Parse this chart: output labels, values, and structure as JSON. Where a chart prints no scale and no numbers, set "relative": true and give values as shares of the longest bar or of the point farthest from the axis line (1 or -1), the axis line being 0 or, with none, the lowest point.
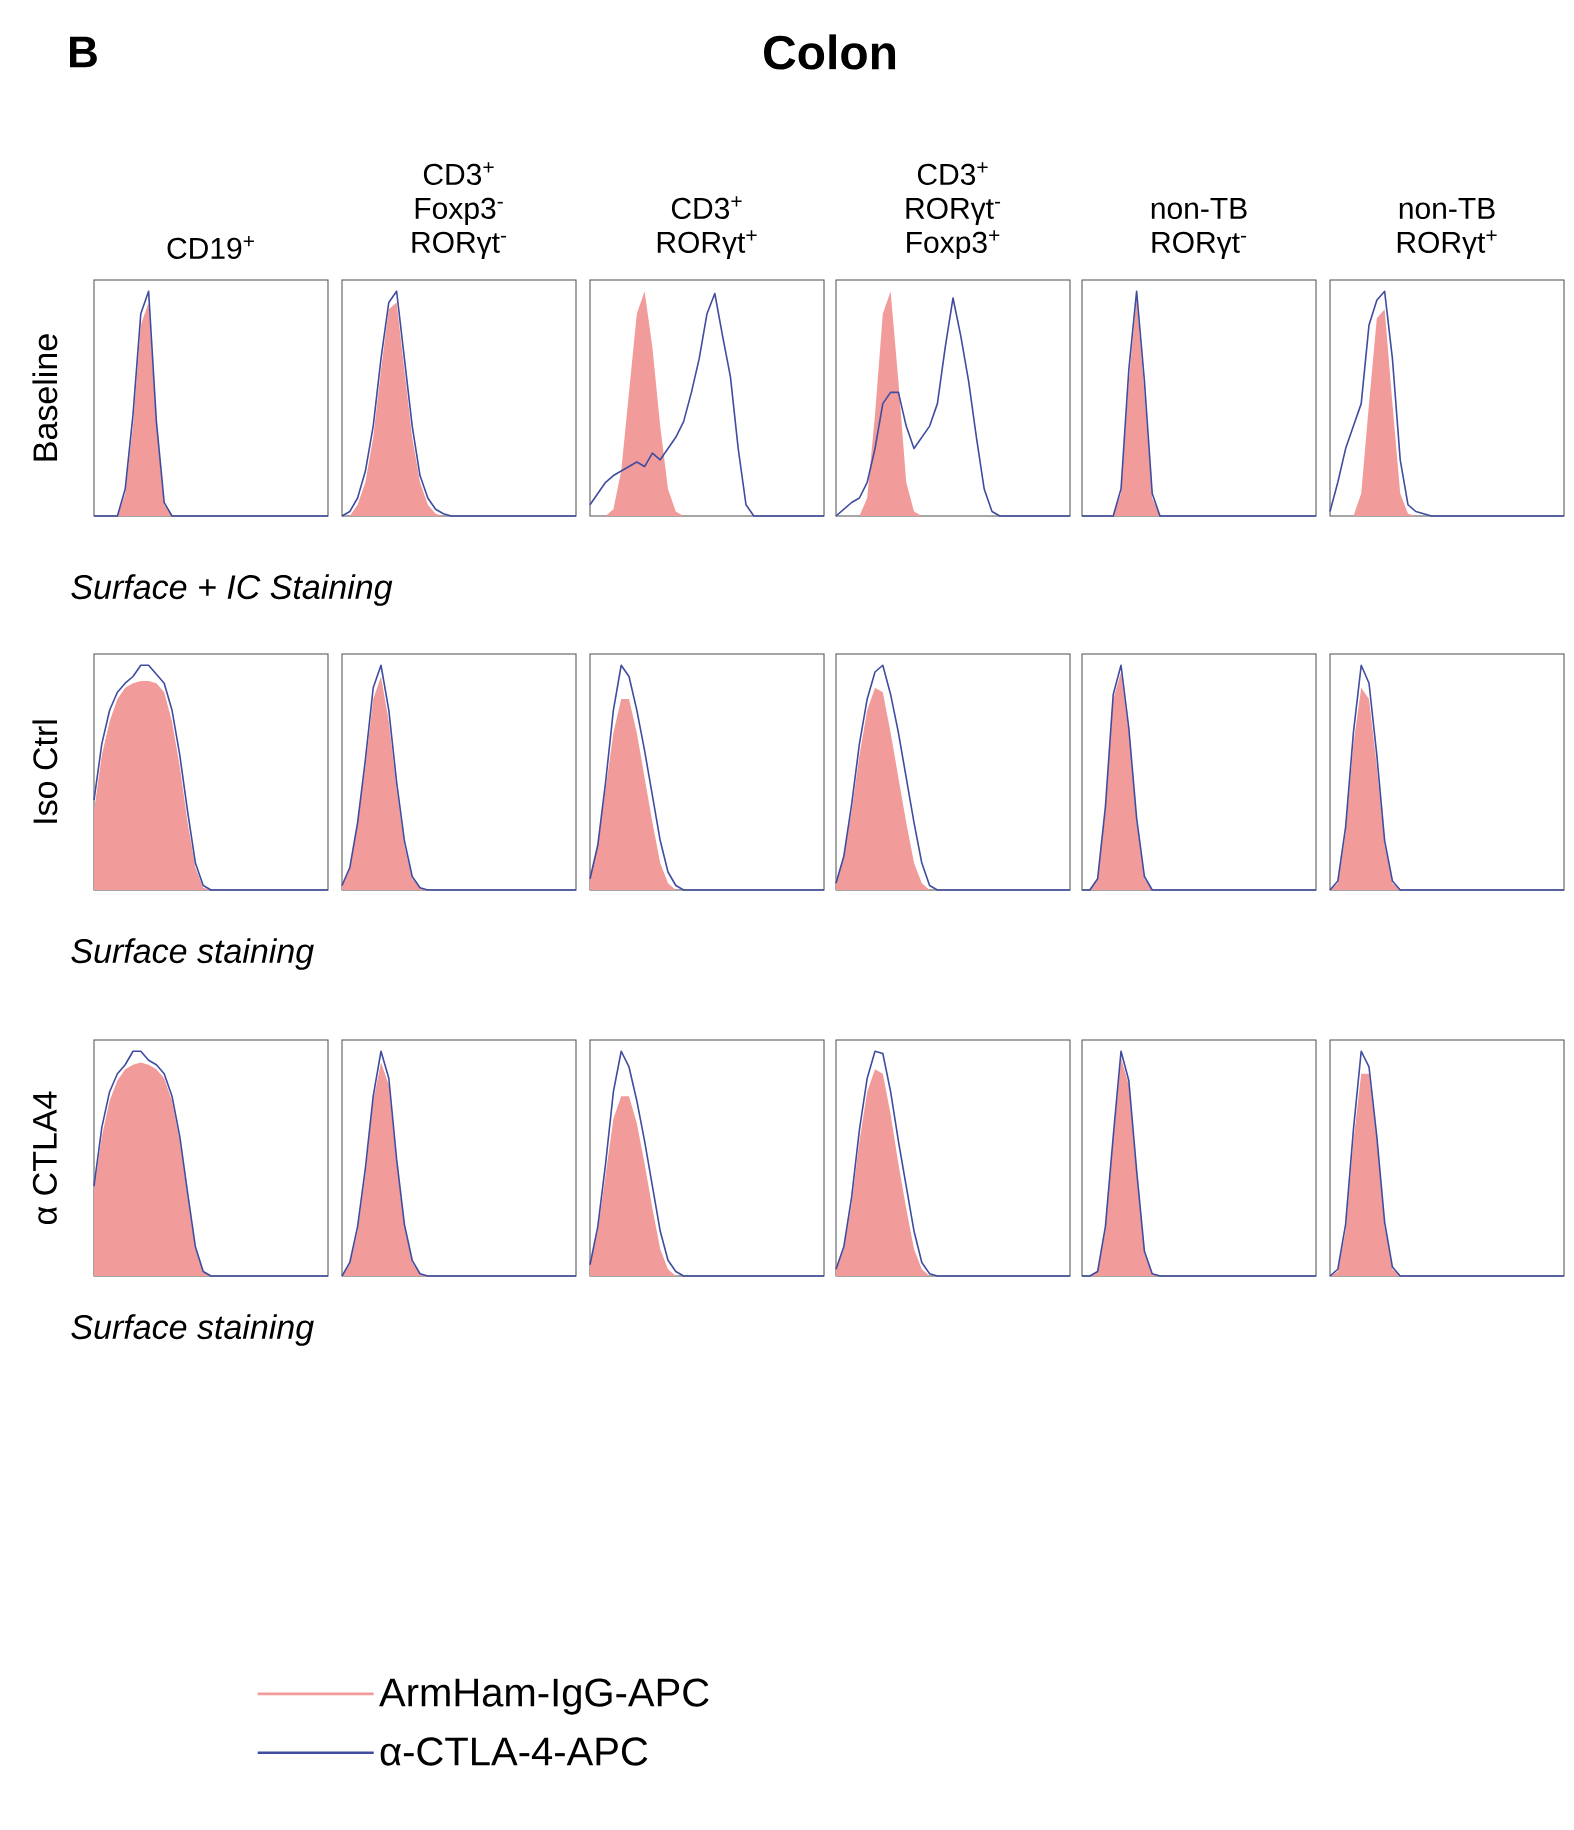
{
  "chart_data": [
    {
      "type": "other",
      "title": "Colon",
      "annotations": [
        "B"
      ]
    },
    {
      "type": "area",
      "relative": true,
      "title": "CD19$^{+}$",
      "ylabel": "Baseline",
      "annotations": [
        "Surface + IC Staining"
      ],
      "legend": "bottom",
      "categories": [
        null,
        null,
        null,
        null,
        null,
        null,
        null,
        null,
        null,
        null,
        null,
        null,
        null,
        null,
        null,
        null,
        null,
        null,
        null,
        null,
        null,
        null,
        null,
        null,
        null,
        null,
        null,
        null,
        null,
        null,
        null
      ],
      "series": [
        {
          "name": "ArmHam-IgG-APC",
          "type": "area",
          "color": "#f29b9b",
          "values": [
            0,
            0,
            0,
            0,
            0.1,
            0.4,
            0.85,
            0.95,
            0.4,
            0.05,
            0,
            0,
            0,
            0,
            0,
            0,
            0,
            0,
            0,
            0,
            0,
            0,
            0,
            0,
            0,
            0,
            0,
            0,
            0,
            0,
            0
          ]
        },
        {
          "name": "α-CTLA-4-APC",
          "type": "line",
          "color": "#3f4c9f",
          "values": [
            0,
            0,
            0,
            0,
            0.12,
            0.45,
            0.9,
            1,
            0.42,
            0.06,
            0,
            0,
            0,
            0,
            0,
            0,
            0,
            0,
            0,
            0,
            0,
            0,
            0,
            0,
            0,
            0,
            0,
            0,
            0,
            0,
            0
          ]
        }
      ]
    },
    {
      "type": "area",
      "relative": true,
      "title": "CD3$^{+}$ Foxp3$^{-}$ RORγt$^{-}$",
      "categories": [
        null,
        null,
        null,
        null,
        null,
        null,
        null,
        null,
        null,
        null,
        null,
        null,
        null,
        null,
        null,
        null,
        null,
        null,
        null,
        null,
        null,
        null,
        null,
        null,
        null,
        null,
        null,
        null,
        null,
        null,
        null
      ],
      "series": [
        {
          "type": "area",
          "color": "#f29b9b",
          "values": [
            0,
            0,
            0.05,
            0.15,
            0.35,
            0.65,
            0.92,
            0.95,
            0.65,
            0.35,
            0.15,
            0.05,
            0.01,
            0,
            0,
            0,
            0,
            0,
            0,
            0,
            0,
            0,
            0,
            0,
            0,
            0,
            0,
            0,
            0,
            0,
            0
          ]
        },
        {
          "type": "line",
          "color": "#3f4c9f",
          "values": [
            0,
            0.02,
            0.08,
            0.2,
            0.4,
            0.7,
            0.95,
            1,
            0.7,
            0.4,
            0.18,
            0.08,
            0.03,
            0.01,
            0,
            0,
            0,
            0,
            0,
            0,
            0,
            0,
            0,
            0,
            0,
            0,
            0,
            0,
            0,
            0,
            0
          ]
        }
      ]
    },
    {
      "type": "area",
      "relative": true,
      "title": "CD3$^{+}$ RORγt$^{+}$",
      "categories": [
        null,
        null,
        null,
        null,
        null,
        null,
        null,
        null,
        null,
        null,
        null,
        null,
        null,
        null,
        null,
        null,
        null,
        null,
        null,
        null,
        null,
        null,
        null,
        null,
        null,
        null,
        null,
        null,
        null,
        null,
        null
      ],
      "series": [
        {
          "type": "area",
          "color": "#f29b9b",
          "values": [
            0,
            0,
            0,
            0.03,
            0.2,
            0.55,
            0.9,
            1,
            0.75,
            0.4,
            0.12,
            0.02,
            0,
            0,
            0,
            0,
            0,
            0,
            0,
            0,
            0,
            0,
            0,
            0,
            0,
            0,
            0,
            0,
            0,
            0,
            0
          ]
        },
        {
          "type": "line",
          "color": "#3f4c9f",
          "values": [
            0.05,
            0.1,
            0.15,
            0.18,
            0.2,
            0.22,
            0.24,
            0.22,
            0.28,
            0.25,
            0.3,
            0.35,
            0.42,
            0.55,
            0.7,
            0.9,
            0.99,
            0.8,
            0.62,
            0.3,
            0.05,
            0,
            0,
            0,
            0,
            0,
            0,
            0,
            0,
            0,
            0
          ]
        }
      ]
    },
    {
      "type": "area",
      "relative": true,
      "title": "CD3$^{+}$ RORγt$^{-}$ Foxp3$^{+}$",
      "categories": [
        null,
        null,
        null,
        null,
        null,
        null,
        null,
        null,
        null,
        null,
        null,
        null,
        null,
        null,
        null,
        null,
        null,
        null,
        null,
        null,
        null,
        null,
        null,
        null,
        null,
        null,
        null,
        null,
        null,
        null,
        null
      ],
      "series": [
        {
          "type": "area",
          "color": "#f29b9b",
          "values": [
            0,
            0,
            0,
            0,
            0.08,
            0.45,
            0.9,
            1,
            0.6,
            0.15,
            0.02,
            0,
            0,
            0,
            0,
            0,
            0,
            0,
            0,
            0,
            0,
            0,
            0,
            0,
            0,
            0,
            0,
            0,
            0,
            0,
            0
          ]
        },
        {
          "type": "line",
          "color": "#3f4c9f",
          "values": [
            0,
            0.03,
            0.06,
            0.08,
            0.15,
            0.3,
            0.5,
            0.55,
            0.55,
            0.4,
            0.3,
            0.35,
            0.4,
            0.5,
            0.75,
            0.97,
            0.8,
            0.6,
            0.35,
            0.12,
            0.02,
            0,
            0,
            0,
            0,
            0,
            0,
            0,
            0,
            0,
            0
          ]
        }
      ]
    },
    {
      "type": "area",
      "relative": true,
      "title": "non-TB RORγt$^{-}$",
      "categories": [
        null,
        null,
        null,
        null,
        null,
        null,
        null,
        null,
        null,
        null,
        null,
        null,
        null,
        null,
        null,
        null,
        null,
        null,
        null,
        null,
        null,
        null,
        null,
        null,
        null,
        null,
        null,
        null,
        null,
        null,
        null
      ],
      "series": [
        {
          "type": "area",
          "color": "#f29b9b",
          "values": [
            0,
            0,
            0,
            0,
            0,
            0.1,
            0.6,
            0.97,
            0.55,
            0.08,
            0,
            0,
            0,
            0,
            0,
            0,
            0,
            0,
            0,
            0,
            0,
            0,
            0,
            0,
            0,
            0,
            0,
            0,
            0,
            0,
            0
          ]
        },
        {
          "type": "line",
          "color": "#3f4c9f",
          "values": [
            0,
            0,
            0,
            0,
            0,
            0.12,
            0.65,
            1,
            0.6,
            0.1,
            0,
            0,
            0,
            0,
            0,
            0,
            0,
            0,
            0,
            0,
            0,
            0,
            0,
            0,
            0,
            0,
            0,
            0,
            0,
            0,
            0
          ]
        }
      ]
    },
    {
      "type": "area",
      "relative": true,
      "title": "non-TB RORγt$^{+}$",
      "categories": [
        null,
        null,
        null,
        null,
        null,
        null,
        null,
        null,
        null,
        null,
        null,
        null,
        null,
        null,
        null,
        null,
        null,
        null,
        null,
        null,
        null,
        null,
        null,
        null,
        null,
        null,
        null,
        null,
        null,
        null,
        null
      ],
      "series": [
        {
          "type": "area",
          "color": "#f29b9b",
          "values": [
            0,
            0,
            0,
            0,
            0.1,
            0.5,
            0.88,
            0.92,
            0.5,
            0.1,
            0.01,
            0,
            0,
            0,
            0,
            0,
            0,
            0,
            0,
            0,
            0,
            0,
            0,
            0,
            0,
            0,
            0,
            0,
            0,
            0,
            0
          ]
        },
        {
          "type": "line",
          "color": "#3f4c9f",
          "values": [
            0.02,
            0.15,
            0.3,
            0.4,
            0.5,
            0.85,
            0.96,
            1,
            0.7,
            0.25,
            0.05,
            0.02,
            0.01,
            0,
            0,
            0,
            0,
            0,
            0,
            0,
            0,
            0,
            0,
            0,
            0,
            0,
            0,
            0,
            0,
            0,
            0
          ]
        }
      ]
    },
    {
      "type": "area",
      "relative": true,
      "ylabel": "Iso Ctrl",
      "annotations": [
        "Surface staining"
      ],
      "categories": [
        null,
        null,
        null,
        null,
        null,
        null,
        null,
        null,
        null,
        null,
        null,
        null,
        null,
        null,
        null,
        null,
        null,
        null,
        null,
        null,
        null,
        null,
        null,
        null,
        null,
        null,
        null,
        null,
        null,
        null,
        null
      ],
      "series": [
        {
          "type": "area",
          "color": "#f29b9b",
          "values": [
            0.35,
            0.6,
            0.75,
            0.85,
            0.9,
            0.92,
            0.93,
            0.93,
            0.92,
            0.88,
            0.75,
            0.55,
            0.3,
            0.1,
            0.01,
            0,
            0,
            0,
            0,
            0,
            0,
            0,
            0,
            0,
            0,
            0,
            0,
            0,
            0,
            0,
            0
          ]
        },
        {
          "type": "line",
          "color": "#3f4c9f",
          "values": [
            0.4,
            0.65,
            0.8,
            0.88,
            0.92,
            0.95,
            1,
            1,
            0.96,
            0.92,
            0.8,
            0.6,
            0.35,
            0.12,
            0.02,
            0,
            0,
            0,
            0,
            0,
            0,
            0,
            0,
            0,
            0,
            0,
            0,
            0,
            0,
            0,
            0
          ]
        }
      ]
    },
    {
      "type": "area",
      "relative": true,
      "categories": [
        null,
        null,
        null,
        null,
        null,
        null,
        null,
        null,
        null,
        null,
        null,
        null,
        null,
        null,
        null,
        null,
        null,
        null,
        null,
        null,
        null,
        null,
        null,
        null,
        null,
        null,
        null,
        null,
        null,
        null,
        null
      ],
      "series": [
        {
          "type": "area",
          "color": "#f29b9b",
          "values": [
            0.02,
            0.1,
            0.3,
            0.55,
            0.85,
            0.95,
            0.75,
            0.45,
            0.2,
            0.05,
            0.01,
            0,
            0,
            0,
            0,
            0,
            0,
            0,
            0,
            0,
            0,
            0,
            0,
            0,
            0,
            0,
            0,
            0,
            0,
            0,
            0
          ]
        },
        {
          "type": "line",
          "color": "#3f4c9f",
          "values": [
            0.02,
            0.1,
            0.3,
            0.58,
            0.9,
            1,
            0.8,
            0.48,
            0.22,
            0.06,
            0.01,
            0,
            0,
            0,
            0,
            0,
            0,
            0,
            0,
            0,
            0,
            0,
            0,
            0,
            0,
            0,
            0,
            0,
            0,
            0,
            0
          ]
        }
      ]
    },
    {
      "type": "area",
      "relative": true,
      "categories": [
        null,
        null,
        null,
        null,
        null,
        null,
        null,
        null,
        null,
        null,
        null,
        null,
        null,
        null,
        null,
        null,
        null,
        null,
        null,
        null,
        null,
        null,
        null,
        null,
        null,
        null,
        null,
        null,
        null,
        null,
        null
      ],
      "series": [
        {
          "type": "area",
          "color": "#f29b9b",
          "values": [
            0.05,
            0.2,
            0.45,
            0.7,
            0.85,
            0.85,
            0.7,
            0.5,
            0.3,
            0.12,
            0.03,
            0,
            0,
            0,
            0,
            0,
            0,
            0,
            0,
            0,
            0,
            0,
            0,
            0,
            0,
            0,
            0,
            0,
            0,
            0,
            0
          ]
        },
        {
          "type": "line",
          "color": "#3f4c9f",
          "values": [
            0.05,
            0.2,
            0.48,
            0.8,
            1,
            0.95,
            0.8,
            0.62,
            0.42,
            0.22,
            0.08,
            0.02,
            0,
            0,
            0,
            0,
            0,
            0,
            0,
            0,
            0,
            0,
            0,
            0,
            0,
            0,
            0,
            0,
            0,
            0,
            0
          ]
        }
      ]
    },
    {
      "type": "area",
      "relative": true,
      "categories": [
        null,
        null,
        null,
        null,
        null,
        null,
        null,
        null,
        null,
        null,
        null,
        null,
        null,
        null,
        null,
        null,
        null,
        null,
        null,
        null,
        null,
        null,
        null,
        null,
        null,
        null,
        null,
        null,
        null,
        null,
        null
      ],
      "series": [
        {
          "type": "area",
          "color": "#f29b9b",
          "values": [
            0.03,
            0.15,
            0.35,
            0.6,
            0.8,
            0.9,
            0.88,
            0.7,
            0.5,
            0.3,
            0.12,
            0.03,
            0,
            0,
            0,
            0,
            0,
            0,
            0,
            0,
            0,
            0,
            0,
            0,
            0,
            0,
            0,
            0,
            0,
            0,
            0
          ]
        },
        {
          "type": "line",
          "color": "#3f4c9f",
          "values": [
            0.03,
            0.15,
            0.38,
            0.65,
            0.85,
            0.97,
            1,
            0.87,
            0.7,
            0.5,
            0.3,
            0.12,
            0.02,
            0,
            0,
            0,
            0,
            0,
            0,
            0,
            0,
            0,
            0,
            0,
            0,
            0,
            0,
            0,
            0,
            0,
            0
          ]
        }
      ]
    },
    {
      "type": "area",
      "relative": true,
      "categories": [
        null,
        null,
        null,
        null,
        null,
        null,
        null,
        null,
        null,
        null,
        null,
        null,
        null,
        null,
        null,
        null,
        null,
        null,
        null,
        null,
        null,
        null,
        null,
        null,
        null,
        null,
        null,
        null,
        null,
        null,
        null
      ],
      "series": [
        {
          "type": "area",
          "color": "#f29b9b",
          "values": [
            0,
            0,
            0.05,
            0.35,
            0.85,
            0.97,
            0.7,
            0.3,
            0.05,
            0,
            0,
            0,
            0,
            0,
            0,
            0,
            0,
            0,
            0,
            0,
            0,
            0,
            0,
            0,
            0,
            0,
            0,
            0,
            0,
            0,
            0
          ]
        },
        {
          "type": "line",
          "color": "#3f4c9f",
          "values": [
            0,
            0,
            0.05,
            0.37,
            0.87,
            1,
            0.72,
            0.32,
            0.06,
            0,
            0,
            0,
            0,
            0,
            0,
            0,
            0,
            0,
            0,
            0,
            0,
            0,
            0,
            0,
            0,
            0,
            0,
            0,
            0,
            0,
            0
          ]
        }
      ]
    },
    {
      "type": "area",
      "relative": true,
      "categories": [
        null,
        null,
        null,
        null,
        null,
        null,
        null,
        null,
        null,
        null,
        null,
        null,
        null,
        null,
        null,
        null,
        null,
        null,
        null,
        null,
        null,
        null,
        null,
        null,
        null,
        null,
        null,
        null,
        null,
        null,
        null
      ],
      "series": [
        {
          "type": "area",
          "color": "#f29b9b",
          "values": [
            0,
            0.03,
            0.25,
            0.65,
            0.9,
            0.85,
            0.55,
            0.2,
            0.03,
            0,
            0,
            0,
            0,
            0,
            0,
            0,
            0,
            0,
            0,
            0,
            0,
            0,
            0,
            0,
            0,
            0,
            0,
            0,
            0,
            0,
            0
          ]
        },
        {
          "type": "line",
          "color": "#3f4c9f",
          "values": [
            0,
            0.04,
            0.28,
            0.7,
            1,
            0.92,
            0.6,
            0.22,
            0.04,
            0,
            0,
            0,
            0,
            0,
            0,
            0,
            0,
            0,
            0,
            0,
            0,
            0,
            0,
            0,
            0,
            0,
            0,
            0,
            0,
            0,
            0
          ]
        }
      ]
    },
    {
      "type": "area",
      "relative": true,
      "ylabel": "α CTLA4",
      "annotations": [
        "Surface staining"
      ],
      "categories": [
        null,
        null,
        null,
        null,
        null,
        null,
        null,
        null,
        null,
        null,
        null,
        null,
        null,
        null,
        null,
        null,
        null,
        null,
        null,
        null,
        null,
        null,
        null,
        null,
        null,
        null,
        null,
        null,
        null,
        null,
        null
      ],
      "series": [
        {
          "type": "area",
          "color": "#f29b9b",
          "values": [
            0.38,
            0.62,
            0.78,
            0.87,
            0.92,
            0.94,
            0.95,
            0.94,
            0.92,
            0.88,
            0.78,
            0.6,
            0.35,
            0.12,
            0.02,
            0,
            0,
            0,
            0,
            0,
            0,
            0,
            0,
            0,
            0,
            0,
            0,
            0,
            0,
            0,
            0
          ]
        },
        {
          "type": "line",
          "color": "#3f4c9f",
          "values": [
            0.4,
            0.66,
            0.82,
            0.9,
            0.94,
            1,
            1,
            0.96,
            0.94,
            0.9,
            0.8,
            0.62,
            0.37,
            0.13,
            0.02,
            0,
            0,
            0,
            0,
            0,
            0,
            0,
            0,
            0,
            0,
            0,
            0,
            0,
            0,
            0,
            0
          ]
        }
      ]
    },
    {
      "type": "area",
      "relative": true,
      "categories": [
        null,
        null,
        null,
        null,
        null,
        null,
        null,
        null,
        null,
        null,
        null,
        null,
        null,
        null,
        null,
        null,
        null,
        null,
        null,
        null,
        null,
        null,
        null,
        null,
        null,
        null,
        null,
        null,
        null,
        null,
        null
      ],
      "series": [
        {
          "type": "area",
          "color": "#f29b9b",
          "values": [
            0,
            0.05,
            0.2,
            0.45,
            0.78,
            0.95,
            0.85,
            0.5,
            0.22,
            0.06,
            0.01,
            0,
            0,
            0,
            0,
            0,
            0,
            0,
            0,
            0,
            0,
            0,
            0,
            0,
            0,
            0,
            0,
            0,
            0,
            0,
            0
          ]
        },
        {
          "type": "line",
          "color": "#3f4c9f",
          "values": [
            0,
            0.06,
            0.22,
            0.48,
            0.8,
            1,
            0.88,
            0.52,
            0.23,
            0.07,
            0.01,
            0,
            0,
            0,
            0,
            0,
            0,
            0,
            0,
            0,
            0,
            0,
            0,
            0,
            0,
            0,
            0,
            0,
            0,
            0,
            0
          ]
        }
      ]
    },
    {
      "type": "area",
      "relative": true,
      "categories": [
        null,
        null,
        null,
        null,
        null,
        null,
        null,
        null,
        null,
        null,
        null,
        null,
        null,
        null,
        null,
        null,
        null,
        null,
        null,
        null,
        null,
        null,
        null,
        null,
        null,
        null,
        null,
        null,
        null,
        null,
        null
      ],
      "series": [
        {
          "type": "area",
          "color": "#f29b9b",
          "values": [
            0.05,
            0.2,
            0.45,
            0.7,
            0.8,
            0.8,
            0.68,
            0.5,
            0.3,
            0.12,
            0.03,
            0,
            0,
            0,
            0,
            0,
            0,
            0,
            0,
            0,
            0,
            0,
            0,
            0,
            0,
            0,
            0,
            0,
            0,
            0,
            0
          ]
        },
        {
          "type": "line",
          "color": "#3f4c9f",
          "values": [
            0.05,
            0.22,
            0.5,
            0.82,
            1,
            0.93,
            0.78,
            0.6,
            0.4,
            0.2,
            0.07,
            0.02,
            0,
            0,
            0,
            0,
            0,
            0,
            0,
            0,
            0,
            0,
            0,
            0,
            0,
            0,
            0,
            0,
            0,
            0,
            0
          ]
        }
      ]
    },
    {
      "type": "area",
      "relative": true,
      "categories": [
        null,
        null,
        null,
        null,
        null,
        null,
        null,
        null,
        null,
        null,
        null,
        null,
        null,
        null,
        null,
        null,
        null,
        null,
        null,
        null,
        null,
        null,
        null,
        null,
        null,
        null,
        null,
        null,
        null,
        null,
        null
      ],
      "series": [
        {
          "type": "area",
          "color": "#f29b9b",
          "values": [
            0.03,
            0.12,
            0.32,
            0.6,
            0.82,
            0.92,
            0.9,
            0.72,
            0.5,
            0.3,
            0.12,
            0.03,
            0,
            0,
            0,
            0,
            0,
            0,
            0,
            0,
            0,
            0,
            0,
            0,
            0,
            0,
            0,
            0,
            0,
            0,
            0
          ]
        },
        {
          "type": "line",
          "color": "#3f4c9f",
          "values": [
            0.03,
            0.13,
            0.35,
            0.65,
            0.88,
            1,
            0.99,
            0.82,
            0.6,
            0.4,
            0.2,
            0.06,
            0.01,
            0,
            0,
            0,
            0,
            0,
            0,
            0,
            0,
            0,
            0,
            0,
            0,
            0,
            0,
            0,
            0,
            0,
            0
          ]
        }
      ]
    },
    {
      "type": "area",
      "relative": true,
      "categories": [
        null,
        null,
        null,
        null,
        null,
        null,
        null,
        null,
        null,
        null,
        null,
        null,
        null,
        null,
        null,
        null,
        null,
        null,
        null,
        null,
        null,
        null,
        null,
        null,
        null,
        null,
        null,
        null,
        null,
        null,
        null
      ],
      "series": [
        {
          "type": "area",
          "color": "#f29b9b",
          "values": [
            0,
            0,
            0.02,
            0.2,
            0.6,
            0.97,
            0.85,
            0.45,
            0.1,
            0.01,
            0,
            0,
            0,
            0,
            0,
            0,
            0,
            0,
            0,
            0,
            0,
            0,
            0,
            0,
            0,
            0,
            0,
            0,
            0,
            0,
            0
          ]
        },
        {
          "type": "line",
          "color": "#3f4c9f",
          "values": [
            0,
            0,
            0.02,
            0.22,
            0.62,
            1,
            0.87,
            0.47,
            0.11,
            0.01,
            0,
            0,
            0,
            0,
            0,
            0,
            0,
            0,
            0,
            0,
            0,
            0,
            0,
            0,
            0,
            0,
            0,
            0,
            0,
            0,
            0
          ]
        }
      ]
    },
    {
      "type": "area",
      "relative": true,
      "categories": [
        null,
        null,
        null,
        null,
        null,
        null,
        null,
        null,
        null,
        null,
        null,
        null,
        null,
        null,
        null,
        null,
        null,
        null,
        null,
        null,
        null,
        null,
        null,
        null,
        null,
        null,
        null,
        null,
        null,
        null,
        null
      ],
      "series": [
        {
          "type": "area",
          "color": "#f29b9b",
          "values": [
            0,
            0.02,
            0.2,
            0.6,
            0.9,
            0.9,
            0.6,
            0.22,
            0.03,
            0,
            0,
            0,
            0,
            0,
            0,
            0,
            0,
            0,
            0,
            0,
            0,
            0,
            0,
            0,
            0,
            0,
            0,
            0,
            0,
            0,
            0
          ]
        },
        {
          "type": "line",
          "color": "#3f4c9f",
          "values": [
            0,
            0.03,
            0.23,
            0.65,
            1,
            0.93,
            0.62,
            0.24,
            0.04,
            0,
            0,
            0,
            0,
            0,
            0,
            0,
            0,
            0,
            0,
            0,
            0,
            0,
            0,
            0,
            0,
            0,
            0,
            0,
            0,
            0,
            0
          ]
        }
      ]
    }
  ]
}
